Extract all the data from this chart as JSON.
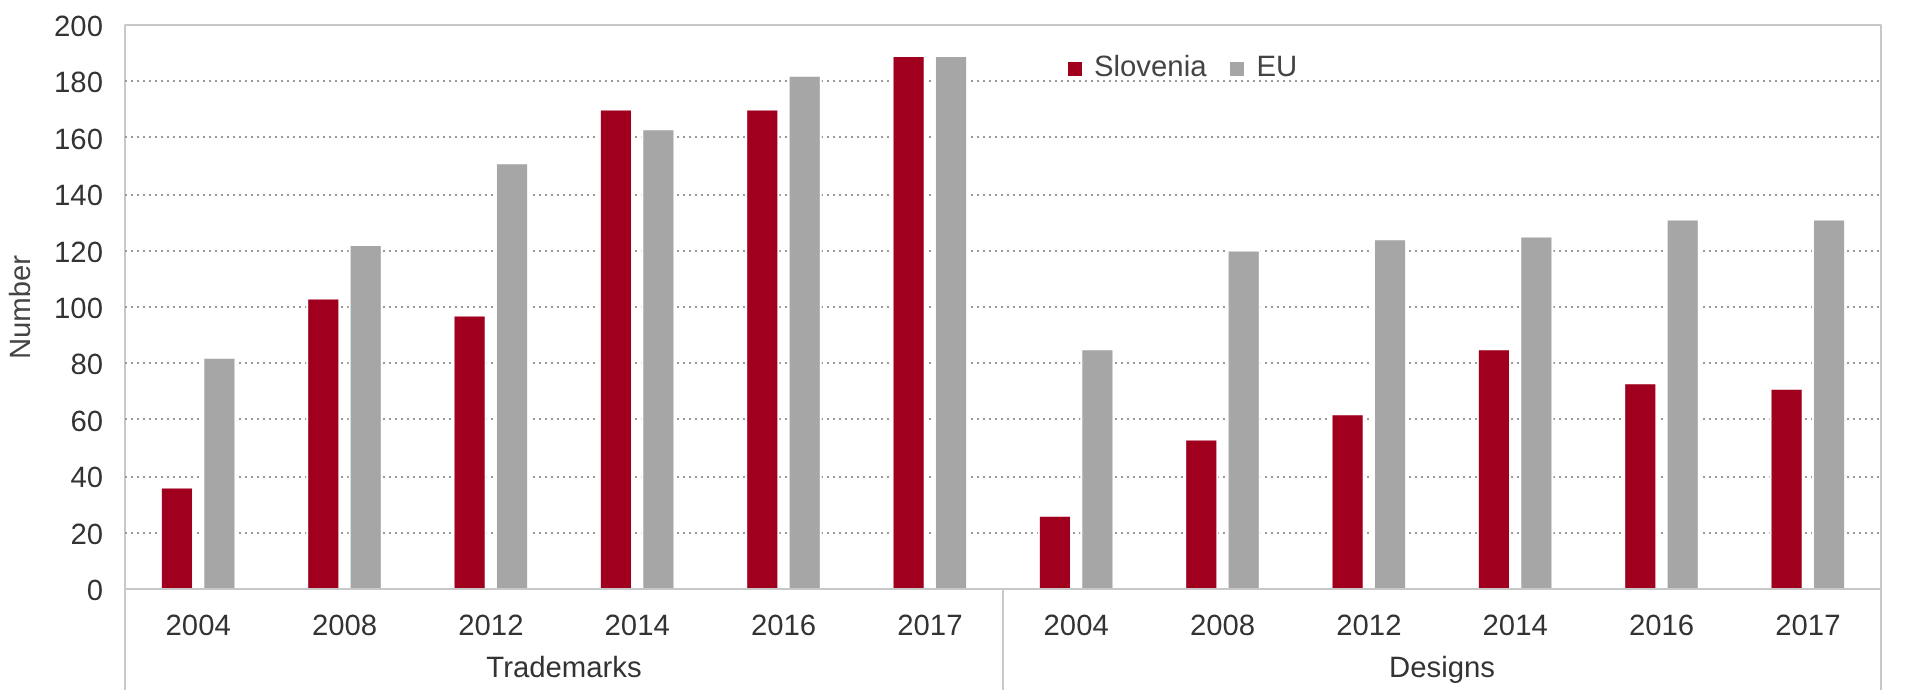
{
  "chart_data": {
    "type": "bar",
    "ylabel": "Number",
    "categories": [
      "2004",
      "2008",
      "2012",
      "2014",
      "2016",
      "2017",
      "2004",
      "2008",
      "2012",
      "2014",
      "2016",
      "2017"
    ],
    "series": [
      {
        "name": "Slovenia",
        "color": "#a0001e",
        "values": [
          36,
          103,
          97,
          170,
          170,
          189,
          26,
          53,
          62,
          85,
          73,
          71
        ]
      },
      {
        "name": "EU",
        "color": "#a6a6a6",
        "values": [
          82,
          122,
          151,
          163,
          182,
          189,
          85,
          120,
          124,
          125,
          131,
          131
        ]
      }
    ],
    "annotations": [
      "Trademarks",
      "Designs"
    ],
    "ylim": [
      0,
      200
    ],
    "yticks": [
      0,
      20,
      40,
      60,
      80,
      100,
      120,
      140,
      160,
      180,
      200
    ],
    "grid": "y",
    "legend": "top"
  }
}
